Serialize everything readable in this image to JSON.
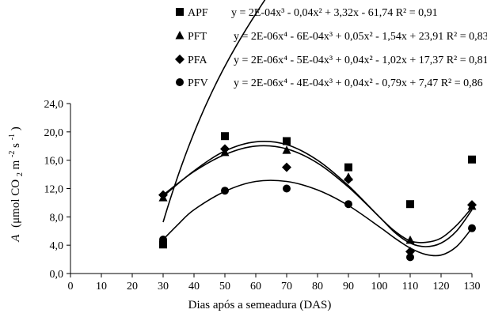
{
  "chart_data": {
    "type": "scatter",
    "xlabel": "Dias após a semeadura (DAS)",
    "ylabel_symbol": "A",
    "ylabel_rest": "(μmol CO",
    "ylabel_sub": "2",
    "ylabel_mid": " m",
    "ylabel_sup1": "-2",
    "ylabel_s": "s",
    "ylabel_sup2": "-1",
    "ylabel_close": ")",
    "xlim": [
      0,
      130
    ],
    "ylim": [
      0,
      24
    ],
    "x_ticks": [
      "0",
      "10",
      "20",
      "30",
      "40",
      "50",
      "60",
      "70",
      "80",
      "90",
      "100",
      "110",
      "120",
      "130"
    ],
    "y_ticks": [
      "0,0",
      "4,0",
      "8,0",
      "12,0",
      "16,0",
      "20,0",
      "24,0"
    ],
    "grid": false,
    "legend_position": "top",
    "x": [
      30,
      50,
      70,
      90,
      110,
      130
    ],
    "series": [
      {
        "name": "APF",
        "marker": "square",
        "values": [
          4.1,
          19.4,
          18.7,
          15.0,
          9.8,
          16.1
        ],
        "equation": "y = 2E-04x³ - 0,04x² + 3,32x - 61,74 R² = 0,91",
        "fit": {
          "coeffs": [
            -61.74,
            3.32,
            -0.04,
            0.0002
          ],
          "range": [
            30,
            130
          ]
        }
      },
      {
        "name": "PFT",
        "marker": "triangle",
        "values": [
          10.7,
          17.1,
          17.4,
          13.6,
          4.7,
          9.5
        ],
        "equation": "y = 2E-06x⁴ - 6E-04x³ + 0,05x² - 1,54x + 23,91 R² = 0,83",
        "fit": {
          "curve": [
            [
              30,
              10.9
            ],
            [
              40,
              14.5
            ],
            [
              50,
              17.3
            ],
            [
              60,
              18.6
            ],
            [
              70,
              18.2
            ],
            [
              80,
              16.0
            ],
            [
              90,
              12.4
            ],
            [
              100,
              8.0
            ],
            [
              105,
              6.0
            ],
            [
              110,
              4.6
            ],
            [
              115,
              4.4
            ],
            [
              120,
              5.0
            ],
            [
              125,
              6.8
            ],
            [
              130,
              9.3
            ]
          ]
        }
      },
      {
        "name": "PFA",
        "marker": "diamond",
        "values": [
          11.1,
          17.6,
          15.0,
          13.3,
          3.1,
          9.7
        ],
        "equation": "y = 2E-06x⁴ - 5E-04x³ + 0,04x² - 1,02x + 17,37 R² = 0,81",
        "fit": {
          "curve": [
            [
              30,
              11.1
            ],
            [
              40,
              14.4
            ],
            [
              50,
              16.8
            ],
            [
              60,
              18.0
            ],
            [
              70,
              17.6
            ],
            [
              80,
              15.6
            ],
            [
              90,
              12.2
            ],
            [
              100,
              8.0
            ],
            [
              105,
              5.8
            ],
            [
              110,
              4.3
            ],
            [
              115,
              3.8
            ],
            [
              120,
              4.3
            ],
            [
              125,
              6.0
            ],
            [
              130,
              9.0
            ]
          ]
        }
      },
      {
        "name": "PFV",
        "marker": "circle",
        "values": [
          4.8,
          11.7,
          12.0,
          9.8,
          2.3,
          6.4
        ],
        "equation": "y = 2E-06x⁴ - 4E-04x³ + 0,04x² - 0,79x + 7,47 R² = 0,86",
        "fit": {
          "curve": [
            [
              30,
              4.8
            ],
            [
              35,
              7.0
            ],
            [
              40,
              9.0
            ],
            [
              50,
              11.6
            ],
            [
              60,
              13.0
            ],
            [
              70,
              13.0
            ],
            [
              80,
              11.8
            ],
            [
              90,
              9.6
            ],
            [
              100,
              6.6
            ],
            [
              105,
              5.0
            ],
            [
              110,
              3.6
            ],
            [
              115,
              2.7
            ],
            [
              120,
              2.6
            ],
            [
              125,
              3.8
            ],
            [
              130,
              6.4
            ]
          ]
        }
      }
    ]
  }
}
